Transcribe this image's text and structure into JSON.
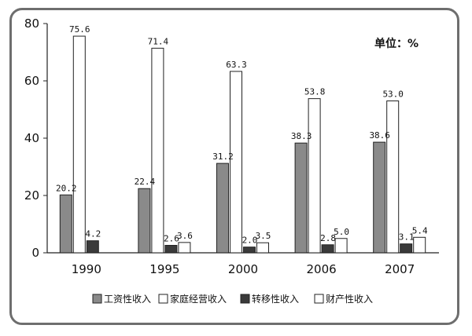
{
  "chart_data": {
    "type": "bar",
    "unit_label": "单位：%",
    "categories": [
      "1990",
      "1995",
      "2000",
      "2006",
      "2007"
    ],
    "series": [
      {
        "name": "工资性收入",
        "values": [
          20.2,
          22.4,
          31.2,
          38.3,
          38.6
        ],
        "color": "#8a8a8a"
      },
      {
        "name": "家庭经营收入",
        "values": [
          75.6,
          71.4,
          63.3,
          53.8,
          53.0
        ],
        "color": "#ffffff"
      },
      {
        "name": "转移性收入",
        "values": [
          4.2,
          2.6,
          2.0,
          2.8,
          3.1
        ],
        "color": "#3a3a3a"
      },
      {
        "name": "财产性收入",
        "values": [
          null,
          3.6,
          3.5,
          5.0,
          5.4
        ],
        "color": "#ffffff"
      }
    ],
    "value_labels": [
      [
        "20.2",
        "22.4",
        "31.2",
        "38.3",
        "38.6"
      ],
      [
        "75.6",
        "71.4",
        "63.3",
        "53.8",
        "53.0"
      ],
      [
        "4.2",
        "2.6",
        "2.0",
        "2.8",
        "3.1"
      ],
      [
        "",
        "3.6",
        "3.5",
        "5.0",
        "5.4"
      ]
    ],
    "yticks": [
      "0",
      "20",
      "40",
      "60",
      "80"
    ],
    "ylim": [
      0,
      80
    ],
    "grid": false,
    "legend_position": "bottom"
  }
}
